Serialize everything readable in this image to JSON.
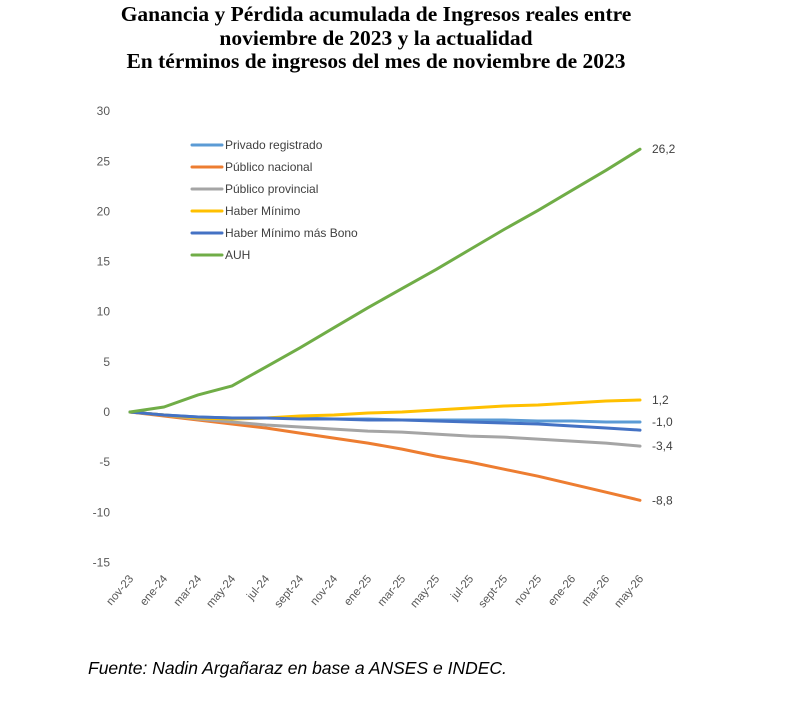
{
  "chart_data": {
    "type": "line",
    "title_lines": [
      "Ganancia y Pérdida acumulada de Ingresos reales entre",
      "noviembre de 2023 y la actualidad",
      "En términos de ingresos del mes de noviembre de 2023"
    ],
    "xlabel": "",
    "ylabel": "",
    "ylim": [
      -15,
      30
    ],
    "yticks": [
      30,
      25,
      20,
      15,
      10,
      5,
      0,
      -5,
      -10,
      -15
    ],
    "grid": false,
    "legend": "top-left",
    "categories": [
      "nov-23",
      "ene-24",
      "mar-24",
      "may-24",
      "jul-24",
      "sept-24",
      "nov-24",
      "ene-25",
      "mar-25",
      "may-25",
      "jul-25",
      "sept-25",
      "nov-25",
      "ene-26",
      "mar-26",
      "may-26"
    ],
    "series": [
      {
        "name": "Privado registrado",
        "color": "#5B9BD5",
        "values": [
          0,
          -0.3,
          -0.5,
          -0.6,
          -0.6,
          -0.6,
          -0.7,
          -0.7,
          -0.8,
          -0.8,
          -0.8,
          -0.8,
          -0.9,
          -0.9,
          -1.0,
          -1.0
        ]
      },
      {
        "name": "Público nacional",
        "color": "#ED7D31",
        "values": [
          0,
          -0.4,
          -0.8,
          -1.2,
          -1.6,
          -2.1,
          -2.6,
          -3.1,
          -3.7,
          -4.4,
          -5.0,
          -5.7,
          -6.4,
          -7.2,
          -8.0,
          -8.8
        ]
      },
      {
        "name": "Público provincial",
        "color": "#A5A5A5",
        "values": [
          0,
          -0.3,
          -0.7,
          -1.0,
          -1.3,
          -1.5,
          -1.7,
          -1.9,
          -2.0,
          -2.2,
          -2.4,
          -2.5,
          -2.7,
          -2.9,
          -3.1,
          -3.4
        ]
      },
      {
        "name": "Haber Mínimo",
        "color": "#FFC000",
        "values": [
          0,
          -0.3,
          -0.6,
          -0.7,
          -0.6,
          -0.4,
          -0.3,
          -0.1,
          0.0,
          0.2,
          0.4,
          0.6,
          0.7,
          0.9,
          1.1,
          1.2
        ]
      },
      {
        "name": "Haber Mínimo más Bono",
        "color": "#4472C4",
        "values": [
          0,
          -0.3,
          -0.5,
          -0.6,
          -0.6,
          -0.7,
          -0.7,
          -0.8,
          -0.8,
          -0.9,
          -1.0,
          -1.1,
          -1.2,
          -1.4,
          -1.6,
          -1.8
        ]
      },
      {
        "name": "AUH",
        "color": "#70AD47",
        "values": [
          0,
          0.5,
          1.7,
          2.6,
          4.5,
          6.4,
          8.4,
          10.4,
          12.3,
          14.2,
          16.2,
          18.2,
          20.1,
          22.1,
          24.1,
          26.2
        ]
      }
    ],
    "end_labels": [
      {
        "series": "AUH",
        "text": "26,2"
      },
      {
        "series": "Haber Mínimo",
        "text": "1,2"
      },
      {
        "series": "Privado registrado",
        "text": "-1,0"
      },
      {
        "series": "Público provincial",
        "text": "-3,4"
      },
      {
        "series": "Público nacional",
        "text": "-8,8"
      }
    ]
  },
  "source": "Fuente: Nadin Argañaraz en base a ANSES e INDEC."
}
